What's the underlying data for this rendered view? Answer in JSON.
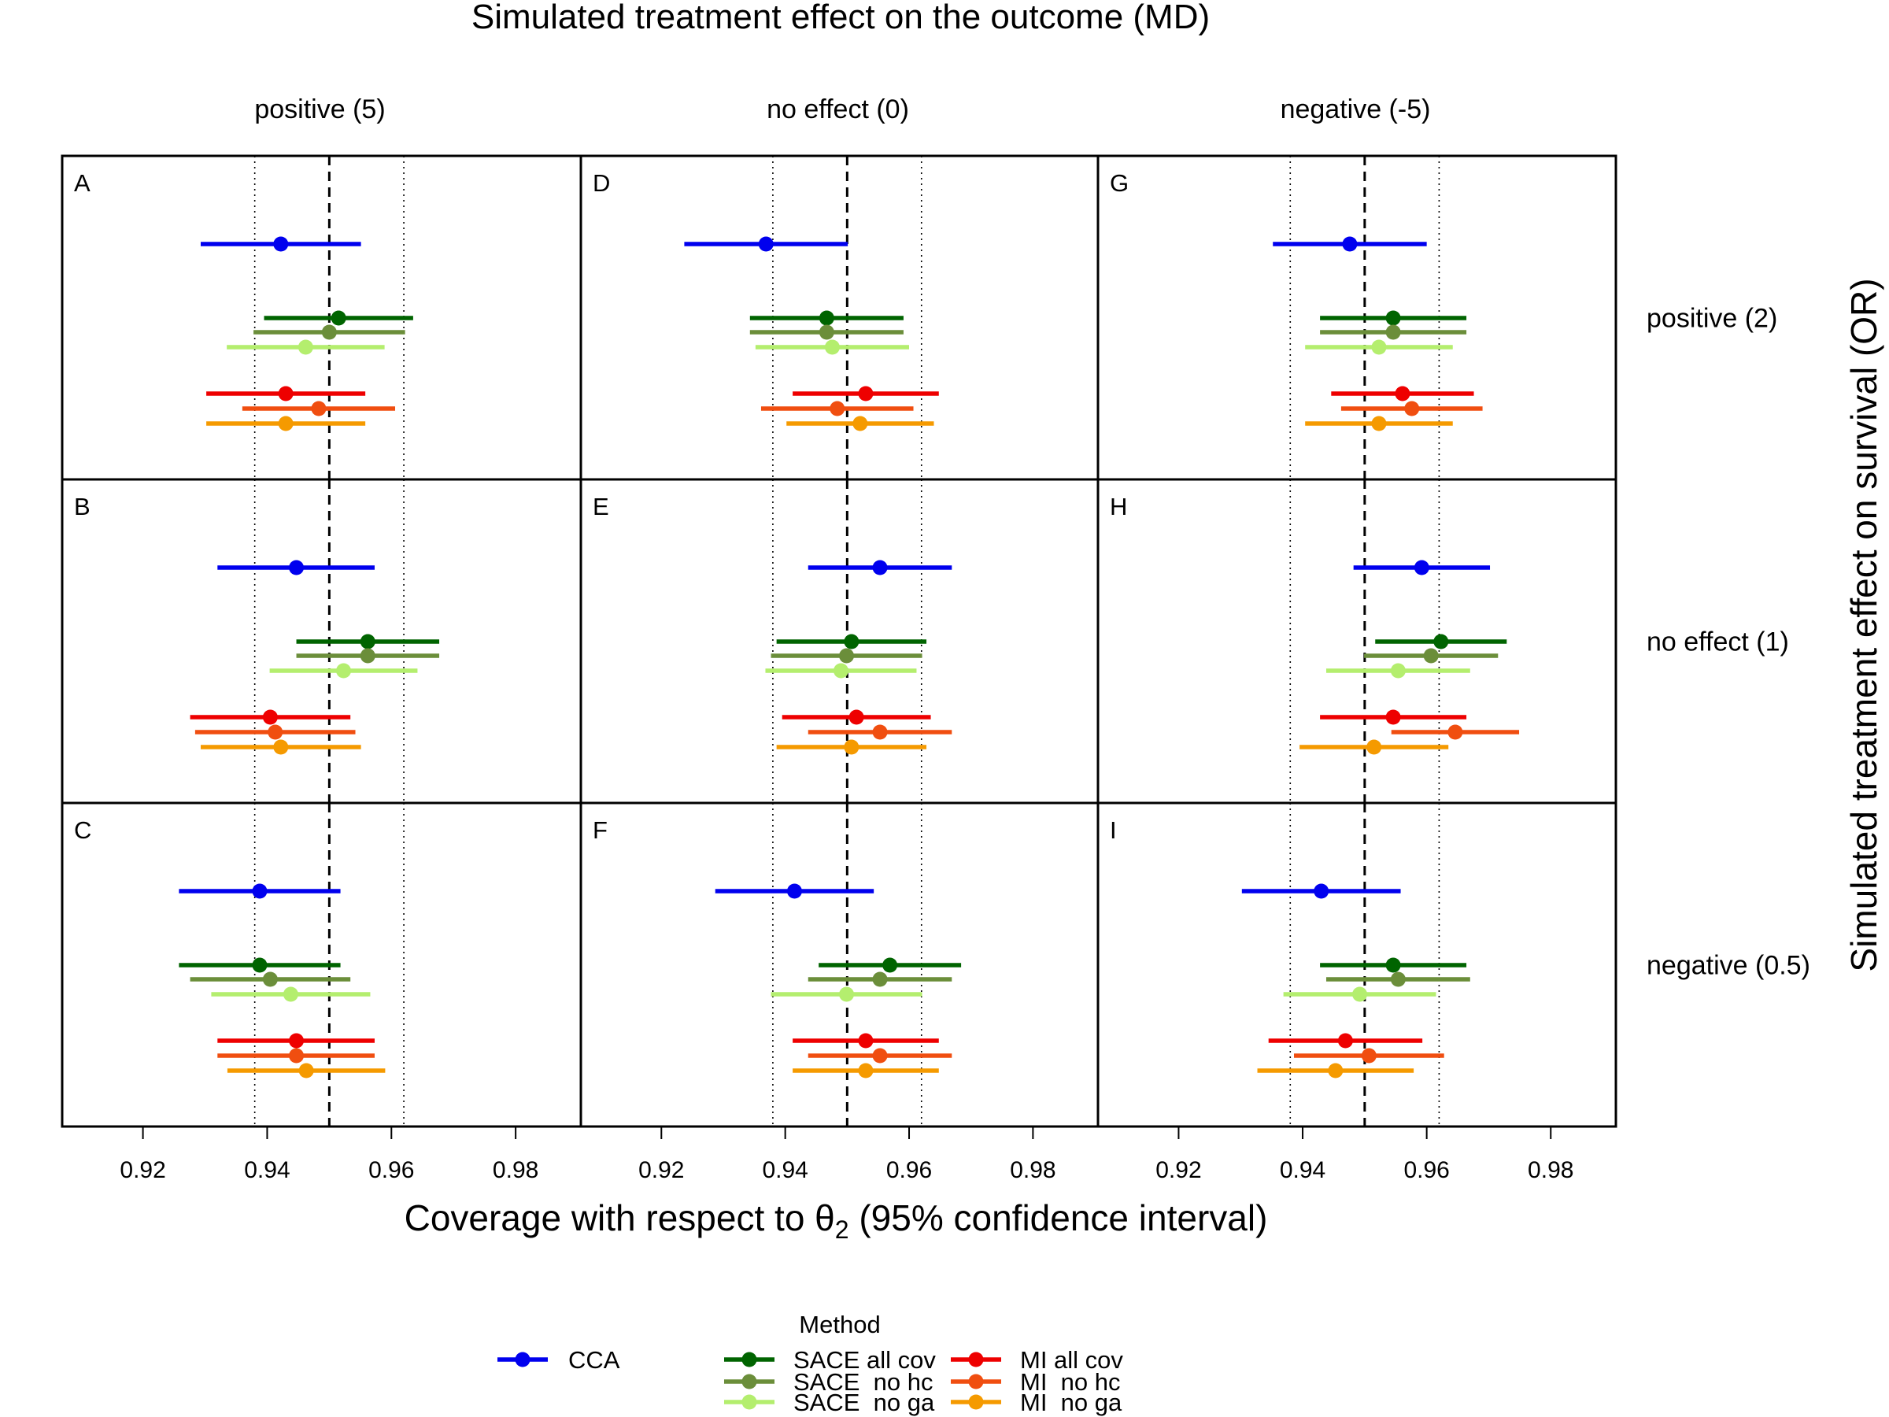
{
  "chart_data": {
    "type": "forest-plot",
    "title": "Simulated treatment effect on the outcome (MD)",
    "xlabel": "Coverage with respect to θ",
    "xlabel_sub": "2",
    "xlabel_tail": " (95% confidence interval)",
    "ylabel": "Simulated treatment effect on survival (OR)",
    "xlim": [
      0.907,
      0.9905
    ],
    "xticks": [
      0.92,
      0.94,
      0.96,
      0.98
    ],
    "xtick_labels": [
      "0.92",
      "0.94",
      "0.96",
      "0.98"
    ],
    "reference_line": 0.95,
    "band_lines": [
      0.938,
      0.962
    ],
    "columns": [
      "positive (5)",
      "no effect (0)",
      "negative (-5)"
    ],
    "rows": [
      "positive (2)",
      "no effect (1)",
      "negative (0.5)"
    ],
    "legend": {
      "title": "Method",
      "entries": [
        "CCA",
        "SACE all cov",
        "SACE  no hc",
        "SACE  no ga",
        "MI all cov",
        "MI  no hc",
        "MI  no ga"
      ]
    },
    "methods": [
      {
        "name": "CCA",
        "color": "#0000ee"
      },
      {
        "name": "SACE all cov",
        "color": "#006400"
      },
      {
        "name": "SACE no hc",
        "color": "#6b8e3a"
      },
      {
        "name": "SACE no ga",
        "color": "#b4ee6e"
      },
      {
        "name": "MI all cov",
        "color": "#ee0000"
      },
      {
        "name": "MI no hc",
        "color": "#f04e10"
      },
      {
        "name": "MI no ga",
        "color": "#f59a00"
      }
    ],
    "panels": [
      {
        "label": "A",
        "row": 0,
        "col": 0,
        "estimates": [
          {
            "est": 0.9422,
            "lo": 0.9293,
            "hi": 0.9551
          },
          {
            "est": 0.9515,
            "lo": 0.9395,
            "hi": 0.9635
          },
          {
            "est": 0.95,
            "lo": 0.9378,
            "hi": 0.9622
          },
          {
            "est": 0.9462,
            "lo": 0.9335,
            "hi": 0.9589
          },
          {
            "est": 0.943,
            "lo": 0.9302,
            "hi": 0.9558
          },
          {
            "est": 0.9483,
            "lo": 0.936,
            "hi": 0.9606
          },
          {
            "est": 0.943,
            "lo": 0.9302,
            "hi": 0.9558
          }
        ]
      },
      {
        "label": "B",
        "row": 1,
        "col": 0,
        "estimates": [
          {
            "est": 0.9447,
            "lo": 0.932,
            "hi": 0.9573
          },
          {
            "est": 0.9562,
            "lo": 0.9447,
            "hi": 0.9677
          },
          {
            "est": 0.9562,
            "lo": 0.9447,
            "hi": 0.9677
          },
          {
            "est": 0.9523,
            "lo": 0.9404,
            "hi": 0.9642
          },
          {
            "est": 0.9405,
            "lo": 0.9276,
            "hi": 0.9534
          },
          {
            "est": 0.9413,
            "lo": 0.9284,
            "hi": 0.9542
          },
          {
            "est": 0.9422,
            "lo": 0.9293,
            "hi": 0.9551
          }
        ]
      },
      {
        "label": "C",
        "row": 2,
        "col": 0,
        "estimates": [
          {
            "est": 0.9388,
            "lo": 0.9258,
            "hi": 0.9518
          },
          {
            "est": 0.9388,
            "lo": 0.9258,
            "hi": 0.9518
          },
          {
            "est": 0.9405,
            "lo": 0.9276,
            "hi": 0.9534
          },
          {
            "est": 0.9438,
            "lo": 0.931,
            "hi": 0.9566
          },
          {
            "est": 0.9447,
            "lo": 0.932,
            "hi": 0.9573
          },
          {
            "est": 0.9447,
            "lo": 0.932,
            "hi": 0.9573
          },
          {
            "est": 0.9463,
            "lo": 0.9336,
            "hi": 0.959
          }
        ]
      },
      {
        "label": "D",
        "row": 0,
        "col": 1,
        "estimates": [
          {
            "est": 0.9369,
            "lo": 0.9237,
            "hi": 0.9501
          },
          {
            "est": 0.9467,
            "lo": 0.9343,
            "hi": 0.9591
          },
          {
            "est": 0.9467,
            "lo": 0.9343,
            "hi": 0.9591
          },
          {
            "est": 0.9476,
            "lo": 0.9352,
            "hi": 0.96
          },
          {
            "est": 0.953,
            "lo": 0.9412,
            "hi": 0.9648
          },
          {
            "est": 0.9484,
            "lo": 0.9361,
            "hi": 0.9607
          },
          {
            "est": 0.9521,
            "lo": 0.9402,
            "hi": 0.964
          }
        ]
      },
      {
        "label": "E",
        "row": 1,
        "col": 1,
        "estimates": [
          {
            "est": 0.9553,
            "lo": 0.9437,
            "hi": 0.9669
          },
          {
            "est": 0.9507,
            "lo": 0.9386,
            "hi": 0.9628
          },
          {
            "est": 0.9499,
            "lo": 0.9377,
            "hi": 0.9621
          },
          {
            "est": 0.949,
            "lo": 0.9368,
            "hi": 0.9612
          },
          {
            "est": 0.9515,
            "lo": 0.9395,
            "hi": 0.9635
          },
          {
            "est": 0.9553,
            "lo": 0.9437,
            "hi": 0.9669
          },
          {
            "est": 0.9507,
            "lo": 0.9386,
            "hi": 0.9628
          }
        ]
      },
      {
        "label": "F",
        "row": 2,
        "col": 1,
        "estimates": [
          {
            "est": 0.9415,
            "lo": 0.9287,
            "hi": 0.9543
          },
          {
            "est": 0.9569,
            "lo": 0.9454,
            "hi": 0.9684
          },
          {
            "est": 0.9553,
            "lo": 0.9437,
            "hi": 0.9669
          },
          {
            "est": 0.9499,
            "lo": 0.9377,
            "hi": 0.9621
          },
          {
            "est": 0.953,
            "lo": 0.9412,
            "hi": 0.9648
          },
          {
            "est": 0.9553,
            "lo": 0.9437,
            "hi": 0.9669
          },
          {
            "est": 0.953,
            "lo": 0.9412,
            "hi": 0.9648
          }
        ]
      },
      {
        "label": "G",
        "row": 0,
        "col": 2,
        "estimates": [
          {
            "est": 0.9476,
            "lo": 0.9352,
            "hi": 0.96
          },
          {
            "est": 0.9546,
            "lo": 0.9428,
            "hi": 0.9664
          },
          {
            "est": 0.9546,
            "lo": 0.9428,
            "hi": 0.9664
          },
          {
            "est": 0.9523,
            "lo": 0.9404,
            "hi": 0.9642
          },
          {
            "est": 0.9561,
            "lo": 0.9446,
            "hi": 0.9676
          },
          {
            "est": 0.9576,
            "lo": 0.9462,
            "hi": 0.969
          },
          {
            "est": 0.9523,
            "lo": 0.9404,
            "hi": 0.9642
          }
        ]
      },
      {
        "label": "H",
        "row": 1,
        "col": 2,
        "estimates": [
          {
            "est": 0.9592,
            "lo": 0.9482,
            "hi": 0.9702
          },
          {
            "est": 0.9623,
            "lo": 0.9517,
            "hi": 0.9729
          },
          {
            "est": 0.9607,
            "lo": 0.9499,
            "hi": 0.9715
          },
          {
            "est": 0.9554,
            "lo": 0.9438,
            "hi": 0.967
          },
          {
            "est": 0.9546,
            "lo": 0.9428,
            "hi": 0.9664
          },
          {
            "est": 0.9646,
            "lo": 0.9543,
            "hi": 0.9749
          },
          {
            "est": 0.9515,
            "lo": 0.9395,
            "hi": 0.9635
          }
        ]
      },
      {
        "label": "I",
        "row": 2,
        "col": 2,
        "estimates": [
          {
            "est": 0.943,
            "lo": 0.9302,
            "hi": 0.9558
          },
          {
            "est": 0.9546,
            "lo": 0.9428,
            "hi": 0.9664
          },
          {
            "est": 0.9554,
            "lo": 0.9438,
            "hi": 0.967
          },
          {
            "est": 0.9492,
            "lo": 0.9369,
            "hi": 0.9615
          },
          {
            "est": 0.9469,
            "lo": 0.9345,
            "hi": 0.9593
          },
          {
            "est": 0.9507,
            "lo": 0.9386,
            "hi": 0.9628
          },
          {
            "est": 0.9453,
            "lo": 0.9327,
            "hi": 0.9579
          }
        ]
      }
    ]
  }
}
